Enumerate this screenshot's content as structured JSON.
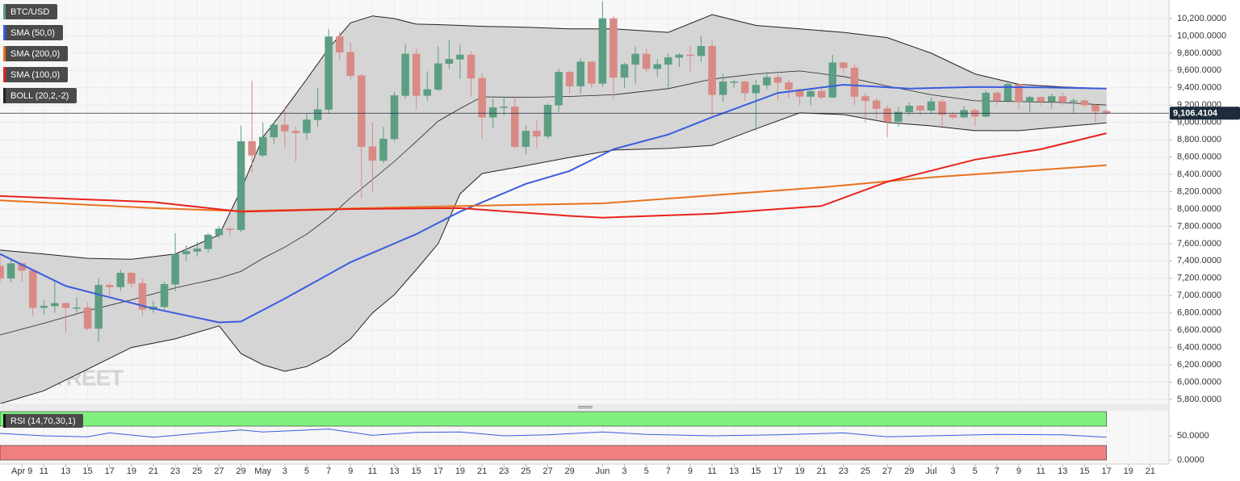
{
  "chart_data": {
    "type": "candlestick",
    "title": "BTC/USD",
    "watermark": "FXSTREET",
    "categories": [
      "Apr 7",
      "Apr 8",
      "Apr 9",
      "Apr 10",
      "Apr 11",
      "Apr 12",
      "Apr 13",
      "Apr 14",
      "Apr 15",
      "Apr 16",
      "Apr 17",
      "Apr 18",
      "Apr 19",
      "Apr 20",
      "Apr 21",
      "Apr 22",
      "Apr 23",
      "Apr 24",
      "Apr 25",
      "Apr 26",
      "Apr 27",
      "Apr 28",
      "Apr 29",
      "Apr 30",
      "May 1",
      "May 2",
      "May 3",
      "May 4",
      "May 5",
      "May 6",
      "May 7",
      "May 8",
      "May 9",
      "May 10",
      "May 11",
      "May 12",
      "May 13",
      "May 14",
      "May 15",
      "May 16",
      "May 17",
      "May 18",
      "May 19",
      "May 20",
      "May 21",
      "May 22",
      "May 23",
      "May 24",
      "May 25",
      "May 26",
      "May 27",
      "May 28",
      "May 29",
      "May 30",
      "May 31",
      "Jun 1",
      "Jun 2",
      "Jun 3",
      "Jun 4",
      "Jun 5",
      "Jun 6",
      "Jun 7",
      "Jun 8",
      "Jun 9",
      "Jun 10",
      "Jun 11",
      "Jun 12",
      "Jun 13",
      "Jun 14",
      "Jun 15",
      "Jun 16",
      "Jun 17",
      "Jun 18",
      "Jun 19",
      "Jun 20",
      "Jun 21",
      "Jun 22",
      "Jun 23",
      "Jun 24",
      "Jun 25",
      "Jun 26",
      "Jun 27",
      "Jun 28",
      "Jun 29",
      "Jun 30",
      "Jul 1",
      "Jul 2",
      "Jul 3",
      "Jul 4",
      "Jul 5",
      "Jul 6",
      "Jul 7",
      "Jul 8",
      "Jul 9",
      "Jul 10",
      "Jul 11",
      "Jul 12",
      "Jul 13",
      "Jul 14",
      "Jul 15",
      "Jul 16",
      "Jul 17"
    ],
    "open": [
      7340,
      7200,
      7370,
      7290,
      6860,
      6880,
      6910,
      6860,
      6860,
      6620,
      7120,
      7100,
      7260,
      7140,
      6840,
      6870,
      7130,
      7480,
      7510,
      7540,
      7700,
      7770,
      7760,
      8780,
      8620,
      8830,
      8970,
      8900,
      8880,
      9030,
      9150,
      9990,
      9810,
      9540,
      8720,
      8560,
      8810,
      9310,
      9790,
      9310,
      9380,
      9680,
      9730,
      9780,
      9510,
      9060,
      9170,
      9180,
      8720,
      8900,
      8840,
      9200,
      9580,
      9420,
      9700,
      9450,
      10200,
      9520,
      9670,
      9790,
      9620,
      9670,
      9750,
      9780,
      9770,
      9880,
      9320,
      9470,
      9470,
      9340,
      9430,
      9520,
      9460,
      9380,
      9300,
      9360,
      9290,
      9690,
      9630,
      9300,
      9250,
      9160,
      9010,
      9120,
      9190,
      9140,
      9240,
      9090,
      9060,
      9140,
      9070,
      9340,
      9250,
      9440,
      9240,
      9290,
      9240,
      9300,
      9240,
      9250,
      9200,
      9130
    ],
    "high": [
      7450,
      7420,
      7380,
      7300,
      6950,
      7180,
      6920,
      6980,
      6920,
      7200,
      7150,
      7300,
      7280,
      7200,
      6940,
      7160,
      7720,
      7580,
      7620,
      7720,
      7800,
      7780,
      8960,
      9480,
      9000,
      9000,
      9180,
      8950,
      9100,
      9400,
      10080,
      10050,
      9920,
      9560,
      9000,
      8950,
      9350,
      9900,
      9850,
      9590,
      9880,
      9950,
      9900,
      9820,
      9560,
      9270,
      9300,
      9300,
      8970,
      9020,
      9220,
      9620,
      9600,
      9740,
      9700,
      10400,
      10230,
      9690,
      9880,
      9850,
      9730,
      9800,
      9800,
      9880,
      10000,
      9950,
      9560,
      9490,
      9480,
      9490,
      9580,
      9560,
      9490,
      9390,
      9400,
      9420,
      9780,
      9700,
      9670,
      9340,
      9280,
      9200,
      9180,
      9230,
      9200,
      9290,
      9270,
      9130,
      9190,
      9160,
      9370,
      9360,
      9470,
      9450,
      9310,
      9300,
      9330,
      9350,
      9280,
      9270,
      9210,
      9150
    ],
    "low": [
      7150,
      7150,
      7160,
      6760,
      6780,
      6800,
      6570,
      6800,
      6600,
      6470,
      7000,
      7050,
      7100,
      6770,
      6800,
      6840,
      7050,
      7400,
      7450,
      7500,
      7660,
      7680,
      7730,
      8420,
      8600,
      8750,
      8700,
      8550,
      8800,
      8950,
      9100,
      9720,
      9500,
      8120,
      8200,
      8530,
      8780,
      9270,
      9150,
      9250,
      9360,
      9620,
      9500,
      9300,
      8810,
      8930,
      9080,
      8700,
      8630,
      8700,
      8810,
      9120,
      9330,
      9330,
      9400,
      9410,
      9270,
      9400,
      9450,
      9580,
      9530,
      9380,
      9640,
      9580,
      9700,
      9080,
      9240,
      9400,
      9250,
      8900,
      9380,
      9250,
      9280,
      9200,
      9200,
      9270,
      9280,
      9570,
      9200,
      9000,
      9040,
      8830,
      8950,
      9080,
      9080,
      9100,
      8950,
      9040,
      9050,
      8960,
      9060,
      9200,
      9230,
      9150,
      9120,
      9200,
      9160,
      9200,
      9110,
      9170,
      9000,
      9080
    ],
    "close": [
      7200,
      7370,
      7290,
      6860,
      6880,
      6910,
      6860,
      6860,
      6620,
      7120,
      7100,
      7260,
      7140,
      6840,
      6870,
      7130,
      7480,
      7510,
      7540,
      7700,
      7770,
      7760,
      8780,
      8620,
      8830,
      8970,
      8900,
      8880,
      9030,
      9150,
      9990,
      9810,
      9540,
      8720,
      8560,
      8810,
      9310,
      9790,
      9310,
      9380,
      9680,
      9730,
      9780,
      9510,
      9060,
      9170,
      9180,
      8720,
      8900,
      8840,
      9200,
      9580,
      9420,
      9700,
      9450,
      10200,
      9520,
      9670,
      9790,
      9620,
      9670,
      9750,
      9780,
      9770,
      9880,
      9320,
      9470,
      9470,
      9340,
      9430,
      9520,
      9460,
      9380,
      9300,
      9360,
      9290,
      9690,
      9630,
      9300,
      9250,
      9160,
      9010,
      9120,
      9190,
      9140,
      9240,
      9090,
      9060,
      9140,
      9070,
      9340,
      9250,
      9440,
      9240,
      9290,
      9240,
      9300,
      9240,
      9250,
      9200,
      9130,
      9106
    ],
    "up_color": "#5c9e82",
    "down_color": "#d98a84",
    "xlim": [
      "Apr 7",
      "Jul 23"
    ],
    "xticks": [
      {
        "value": "Apr 9",
        "label": "Apr 9"
      },
      {
        "value": "Apr 11",
        "label": "11"
      },
      {
        "value": "Apr 13",
        "label": "13"
      },
      {
        "value": "Apr 15",
        "label": "15"
      },
      {
        "value": "Apr 17",
        "label": "17"
      },
      {
        "value": "Apr 19",
        "label": "19"
      },
      {
        "value": "Apr 21",
        "label": "21"
      },
      {
        "value": "Apr 23",
        "label": "23"
      },
      {
        "value": "Apr 25",
        "label": "25"
      },
      {
        "value": "Apr 27",
        "label": "27"
      },
      {
        "value": "Apr 29",
        "label": "29"
      },
      {
        "value": "May 1",
        "label": "May"
      },
      {
        "value": "May 3",
        "label": "3"
      },
      {
        "value": "May 5",
        "label": "5"
      },
      {
        "value": "May 7",
        "label": "7"
      },
      {
        "value": "May 9",
        "label": "9"
      },
      {
        "value": "May 11",
        "label": "11"
      },
      {
        "value": "May 13",
        "label": "13"
      },
      {
        "value": "May 15",
        "label": "15"
      },
      {
        "value": "May 17",
        "label": "17"
      },
      {
        "value": "May 19",
        "label": "19"
      },
      {
        "value": "May 21",
        "label": "21"
      },
      {
        "value": "May 23",
        "label": "23"
      },
      {
        "value": "May 25",
        "label": "25"
      },
      {
        "value": "May 27",
        "label": "27"
      },
      {
        "value": "May 29",
        "label": "29"
      },
      {
        "value": "Jun 1",
        "label": "Jun"
      },
      {
        "value": "Jun 3",
        "label": "3"
      },
      {
        "value": "Jun 5",
        "label": "5"
      },
      {
        "value": "Jun 7",
        "label": "7"
      },
      {
        "value": "Jun 9",
        "label": "9"
      },
      {
        "value": "Jun 11",
        "label": "11"
      },
      {
        "value": "Jun 13",
        "label": "13"
      },
      {
        "value": "Jun 15",
        "label": "15"
      },
      {
        "value": "Jun 17",
        "label": "17"
      },
      {
        "value": "Jun 19",
        "label": "19"
      },
      {
        "value": "Jun 21",
        "label": "21"
      },
      {
        "value": "Jun 23",
        "label": "23"
      },
      {
        "value": "Jun 25",
        "label": "25"
      },
      {
        "value": "Jun 27",
        "label": "27"
      },
      {
        "value": "Jun 29",
        "label": "29"
      },
      {
        "value": "Jul 1",
        "label": "Jul"
      },
      {
        "value": "Jul 3",
        "label": "3"
      },
      {
        "value": "Jul 5",
        "label": "5"
      },
      {
        "value": "Jul 7",
        "label": "7"
      },
      {
        "value": "Jul 9",
        "label": "9"
      },
      {
        "value": "Jul 11",
        "label": "11"
      },
      {
        "value": "Jul 13",
        "label": "13"
      },
      {
        "value": "Jul 15",
        "label": "15"
      },
      {
        "value": "Jul 17",
        "label": "17"
      },
      {
        "value": "Jul 19",
        "label": "19"
      },
      {
        "value": "Jul 21",
        "label": "21"
      }
    ],
    "ylim": [
      5753,
      10414
    ],
    "yticks": [
      {
        "value": 5800,
        "label": "5,800.0000"
      },
      {
        "value": 6000,
        "label": "6,000.0000"
      },
      {
        "value": 6200,
        "label": "6,200.0000"
      },
      {
        "value": 6400,
        "label": "6,400.0000"
      },
      {
        "value": 6600,
        "label": "6,600.0000"
      },
      {
        "value": 6800,
        "label": "6,800.0000"
      },
      {
        "value": 7000,
        "label": "7,000.0000"
      },
      {
        "value": 7200,
        "label": "7,200.0000"
      },
      {
        "value": 7400,
        "label": "7,400.0000"
      },
      {
        "value": 7600,
        "label": "7,600.0000"
      },
      {
        "value": 7800,
        "label": "7,800.0000"
      },
      {
        "value": 8000,
        "label": "8,000.0000"
      },
      {
        "value": 8200,
        "label": "8,200.0000"
      },
      {
        "value": 8400,
        "label": "8,400.0000"
      },
      {
        "value": 8600,
        "label": "8,600.0000"
      },
      {
        "value": 8800,
        "label": "8,800.0000"
      },
      {
        "value": 9000,
        "label": "9,000.0000"
      },
      {
        "value": 9200,
        "label": "9,200.0000"
      },
      {
        "value": 9400,
        "label": "9,400.0000"
      },
      {
        "value": 9600,
        "label": "9,600.0000"
      },
      {
        "value": 9800,
        "label": "9,800.0000"
      },
      {
        "value": 10000,
        "label": "10,000.0000"
      },
      {
        "value": 10200,
        "label": "10,200.0000"
      }
    ],
    "grid": true,
    "last_price": {
      "value": 9106.4104,
      "label": "9,106.4104"
    },
    "series": [
      {
        "name": "SMA (50,0)",
        "color": "#3a5ce0",
        "x": [
          "Apr 7",
          "Apr 13",
          "Apr 21",
          "Apr 27",
          "Apr 29",
          "May 3",
          "May 9",
          "May 15",
          "May 19",
          "May 25",
          "May 29",
          "Jun 2",
          "Jun 7",
          "Jun 11",
          "Jun 17",
          "Jun 23",
          "Jun 29",
          "Jul 5",
          "Jul 11",
          "Jul 17"
        ],
        "values": [
          7480,
          7110,
          6850,
          6690,
          6700,
          6965,
          7385,
          7710,
          7970,
          8290,
          8440,
          8690,
          8860,
          9060,
          9340,
          9435,
          9390,
          9410,
          9405,
          9390
        ]
      },
      {
        "name": "SMA (200,0)",
        "color": "#e8721c",
        "x": [
          "Apr 7",
          "Apr 21",
          "Apr 29",
          "May 19",
          "Jun 1",
          "Jun 21",
          "Jul 1",
          "Jul 17"
        ],
        "values": [
          8100,
          8010,
          7975,
          8035,
          8065,
          8250,
          8365,
          8505
        ]
      },
      {
        "name": "SMA (100,0)",
        "color": "#e8231c",
        "x": [
          "Apr 7",
          "Apr 21",
          "Apr 29",
          "May 9",
          "May 19",
          "May 29",
          "Jun 1",
          "Jun 11",
          "Jun 21",
          "Jun 27",
          "Jul 5",
          "Jul 11",
          "Jul 17"
        ],
        "values": [
          8150,
          8080,
          7970,
          8000,
          8010,
          7920,
          7900,
          7945,
          8035,
          8315,
          8570,
          8690,
          8875
        ]
      }
    ],
    "bands": {
      "name": "BOLL (20,2,-2)",
      "color": "#222222",
      "fill": "#d5d5d5",
      "x": [
        "Apr 7",
        "Apr 11",
        "Apr 15",
        "Apr 19",
        "Apr 23",
        "Apr 27",
        "Apr 29",
        "May 1",
        "May 3",
        "May 5",
        "May 7",
        "May 9",
        "May 11",
        "May 13",
        "May 15",
        "May 17",
        "May 19",
        "May 21",
        "May 25",
        "May 29",
        "Jun 2",
        "Jun 7",
        "Jun 11",
        "Jun 15",
        "Jun 19",
        "Jun 23",
        "Jun 27",
        "Jul 1",
        "Jul 5",
        "Jul 9",
        "Jul 13",
        "Jul 17"
      ],
      "upper": [
        7525,
        7480,
        7430,
        7420,
        7480,
        7700,
        8220,
        8830,
        9155,
        9500,
        9855,
        10150,
        10230,
        10200,
        10135,
        10130,
        10120,
        10110,
        10100,
        10080,
        10080,
        10040,
        10245,
        10120,
        10080,
        10040,
        9980,
        9800,
        9560,
        9440,
        9410,
        9390
      ],
      "middle": [
        6545,
        6680,
        6825,
        6950,
        7090,
        7200,
        7280,
        7430,
        7560,
        7710,
        7900,
        8130,
        8340,
        8550,
        8780,
        9015,
        9160,
        9295,
        9290,
        9300,
        9320,
        9390,
        9500,
        9560,
        9595,
        9530,
        9420,
        9320,
        9250,
        9240,
        9230,
        9200
      ],
      "lower": [
        5750,
        5900,
        6150,
        6400,
        6500,
        6650,
        6330,
        6200,
        6125,
        6180,
        6310,
        6500,
        6800,
        7010,
        7300,
        7600,
        8175,
        8410,
        8500,
        8595,
        8680,
        8700,
        8735,
        8925,
        9110,
        9090,
        9000,
        8960,
        8905,
        8905,
        8950,
        8995
      ]
    },
    "rsi": {
      "name": "RSI (14,70,30,1)",
      "color": "#3a5ce0",
      "ylim": [
        0,
        100
      ],
      "yticks": [
        {
          "value": 50,
          "label": "50.0000"
        },
        {
          "value": 0,
          "label": "0.0000"
        }
      ],
      "overbought": 70,
      "oversold": 30,
      "overbought_color": "#80f080",
      "oversold_color": "#f08080",
      "x": [
        "Apr 7",
        "Apr 11",
        "Apr 15",
        "Apr 17",
        "Apr 21",
        "Apr 25",
        "Apr 29",
        "May 1",
        "May 7",
        "May 11",
        "May 15",
        "May 19",
        "May 23",
        "May 27",
        "Jun 1",
        "Jun 5",
        "Jun 11",
        "Jun 17",
        "Jun 23",
        "Jun 27",
        "Jul 1",
        "Jul 7",
        "Jul 13",
        "Jul 17"
      ],
      "values": [
        55,
        50,
        48,
        56,
        47,
        55,
        62,
        58,
        64,
        51,
        57,
        58,
        50,
        52,
        58,
        53,
        50,
        52,
        56,
        48,
        50,
        53,
        52,
        47
      ]
    }
  }
}
